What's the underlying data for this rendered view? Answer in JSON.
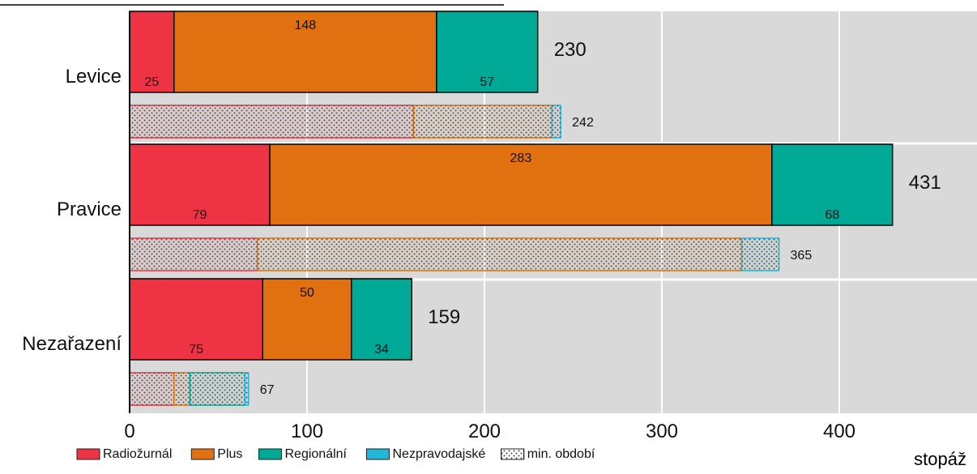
{
  "chart_data": {
    "type": "bar",
    "orientation": "horizontal",
    "stacked": true,
    "title": "",
    "xlabel": "stopáž",
    "ylabel": "",
    "xlim": [
      0,
      480
    ],
    "x_ticks": [
      0,
      100,
      200,
      300,
      400
    ],
    "grid": true,
    "legend_placement": "bottom",
    "categories": [
      "Levice",
      "Pravice",
      "Nezařazení"
    ],
    "current_series": [
      {
        "name": "Radiožurnál",
        "color": "#ee3344",
        "values": [
          25,
          79,
          75
        ]
      },
      {
        "name": "Plus",
        "color": "#e07010",
        "values": [
          148,
          283,
          50
        ]
      },
      {
        "name": "Regionální",
        "color": "#00a896",
        "values": [
          57,
          68,
          34
        ]
      }
    ],
    "current_totals": [
      230,
      431,
      159
    ],
    "previous_period": {
      "label": "min. období",
      "pattern": "dotted",
      "series": [
        {
          "name": "Radiožurnál",
          "color": "#ee3344",
          "values": [
            160,
            72,
            25
          ]
        },
        {
          "name": "Plus",
          "color": "#e07010",
          "values": [
            78,
            273,
            9
          ]
        },
        {
          "name": "Regionální",
          "color": "#00a896",
          "values": [
            0,
            0,
            31
          ]
        },
        {
          "name": "Nezpravodajské",
          "color": "#21b7d6",
          "values": [
            5,
            21,
            2
          ]
        }
      ],
      "totals": [
        242,
        365,
        67
      ]
    },
    "legend": [
      {
        "label": "Radiožurnál",
        "color": "#ee3344",
        "kind": "solid"
      },
      {
        "label": "Plus",
        "color": "#e07010",
        "kind": "solid"
      },
      {
        "label": "Regionální",
        "color": "#00a896",
        "kind": "solid"
      },
      {
        "label": "Nezpravodajské",
        "color": "#21b7d6",
        "kind": "solid"
      },
      {
        "label": "min. období",
        "color": "#ffffff",
        "kind": "dotted"
      }
    ]
  }
}
